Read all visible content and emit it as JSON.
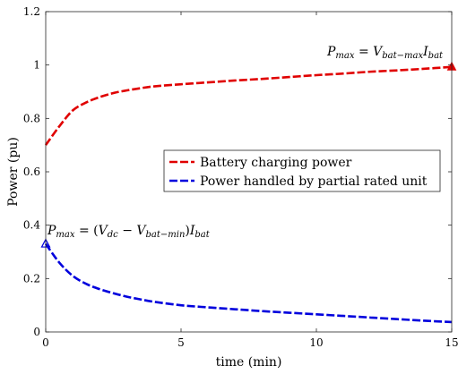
{
  "chart_data": {
    "type": "line",
    "xlabel": "time (min)",
    "ylabel": "Power (pu)",
    "xlim": [
      0,
      15
    ],
    "ylim": [
      0,
      1.2
    ],
    "xticks": [
      "0",
      "5",
      "10",
      "15"
    ],
    "yticks": [
      "0",
      "0.2",
      "0.4",
      "0.6",
      "0.8",
      "1",
      "1.2"
    ],
    "grid": false,
    "legend_position": "center-right",
    "series": [
      {
        "name": "Battery charging power",
        "color": "#e00000",
        "style": "dashed",
        "marker_end": "filled-triangle",
        "x": [
          0,
          0.5,
          1,
          1.5,
          2,
          2.5,
          3,
          3.5,
          4,
          5,
          6,
          7,
          8,
          9,
          10,
          11,
          12,
          13,
          14,
          15
        ],
        "y": [
          0.7,
          0.77,
          0.83,
          0.86,
          0.88,
          0.895,
          0.905,
          0.913,
          0.92,
          0.928,
          0.935,
          0.942,
          0.948,
          0.955,
          0.962,
          0.968,
          0.975,
          0.98,
          0.986,
          0.993
        ]
      },
      {
        "name": "Power handled by partial rated unit",
        "color": "#0000dd",
        "style": "dashed",
        "marker_start": "open-triangle",
        "x": [
          0,
          0.5,
          1,
          1.5,
          2,
          2.5,
          3,
          3.5,
          4,
          5,
          6,
          7,
          8,
          9,
          10,
          11,
          12,
          13,
          14,
          15
        ],
        "y": [
          0.33,
          0.26,
          0.21,
          0.18,
          0.16,
          0.145,
          0.132,
          0.122,
          0.113,
          0.1,
          0.092,
          0.085,
          0.078,
          0.072,
          0.066,
          0.06,
          0.054,
          0.048,
          0.042,
          0.037
        ]
      }
    ],
    "annotations": [
      {
        "text": "Pmax = Vbat-max Ibat",
        "x": 15,
        "y": 0.99
      },
      {
        "text": "Pmax = (Vdc − Vbat-min) Ibat",
        "x": 0,
        "y": 0.33
      }
    ]
  }
}
